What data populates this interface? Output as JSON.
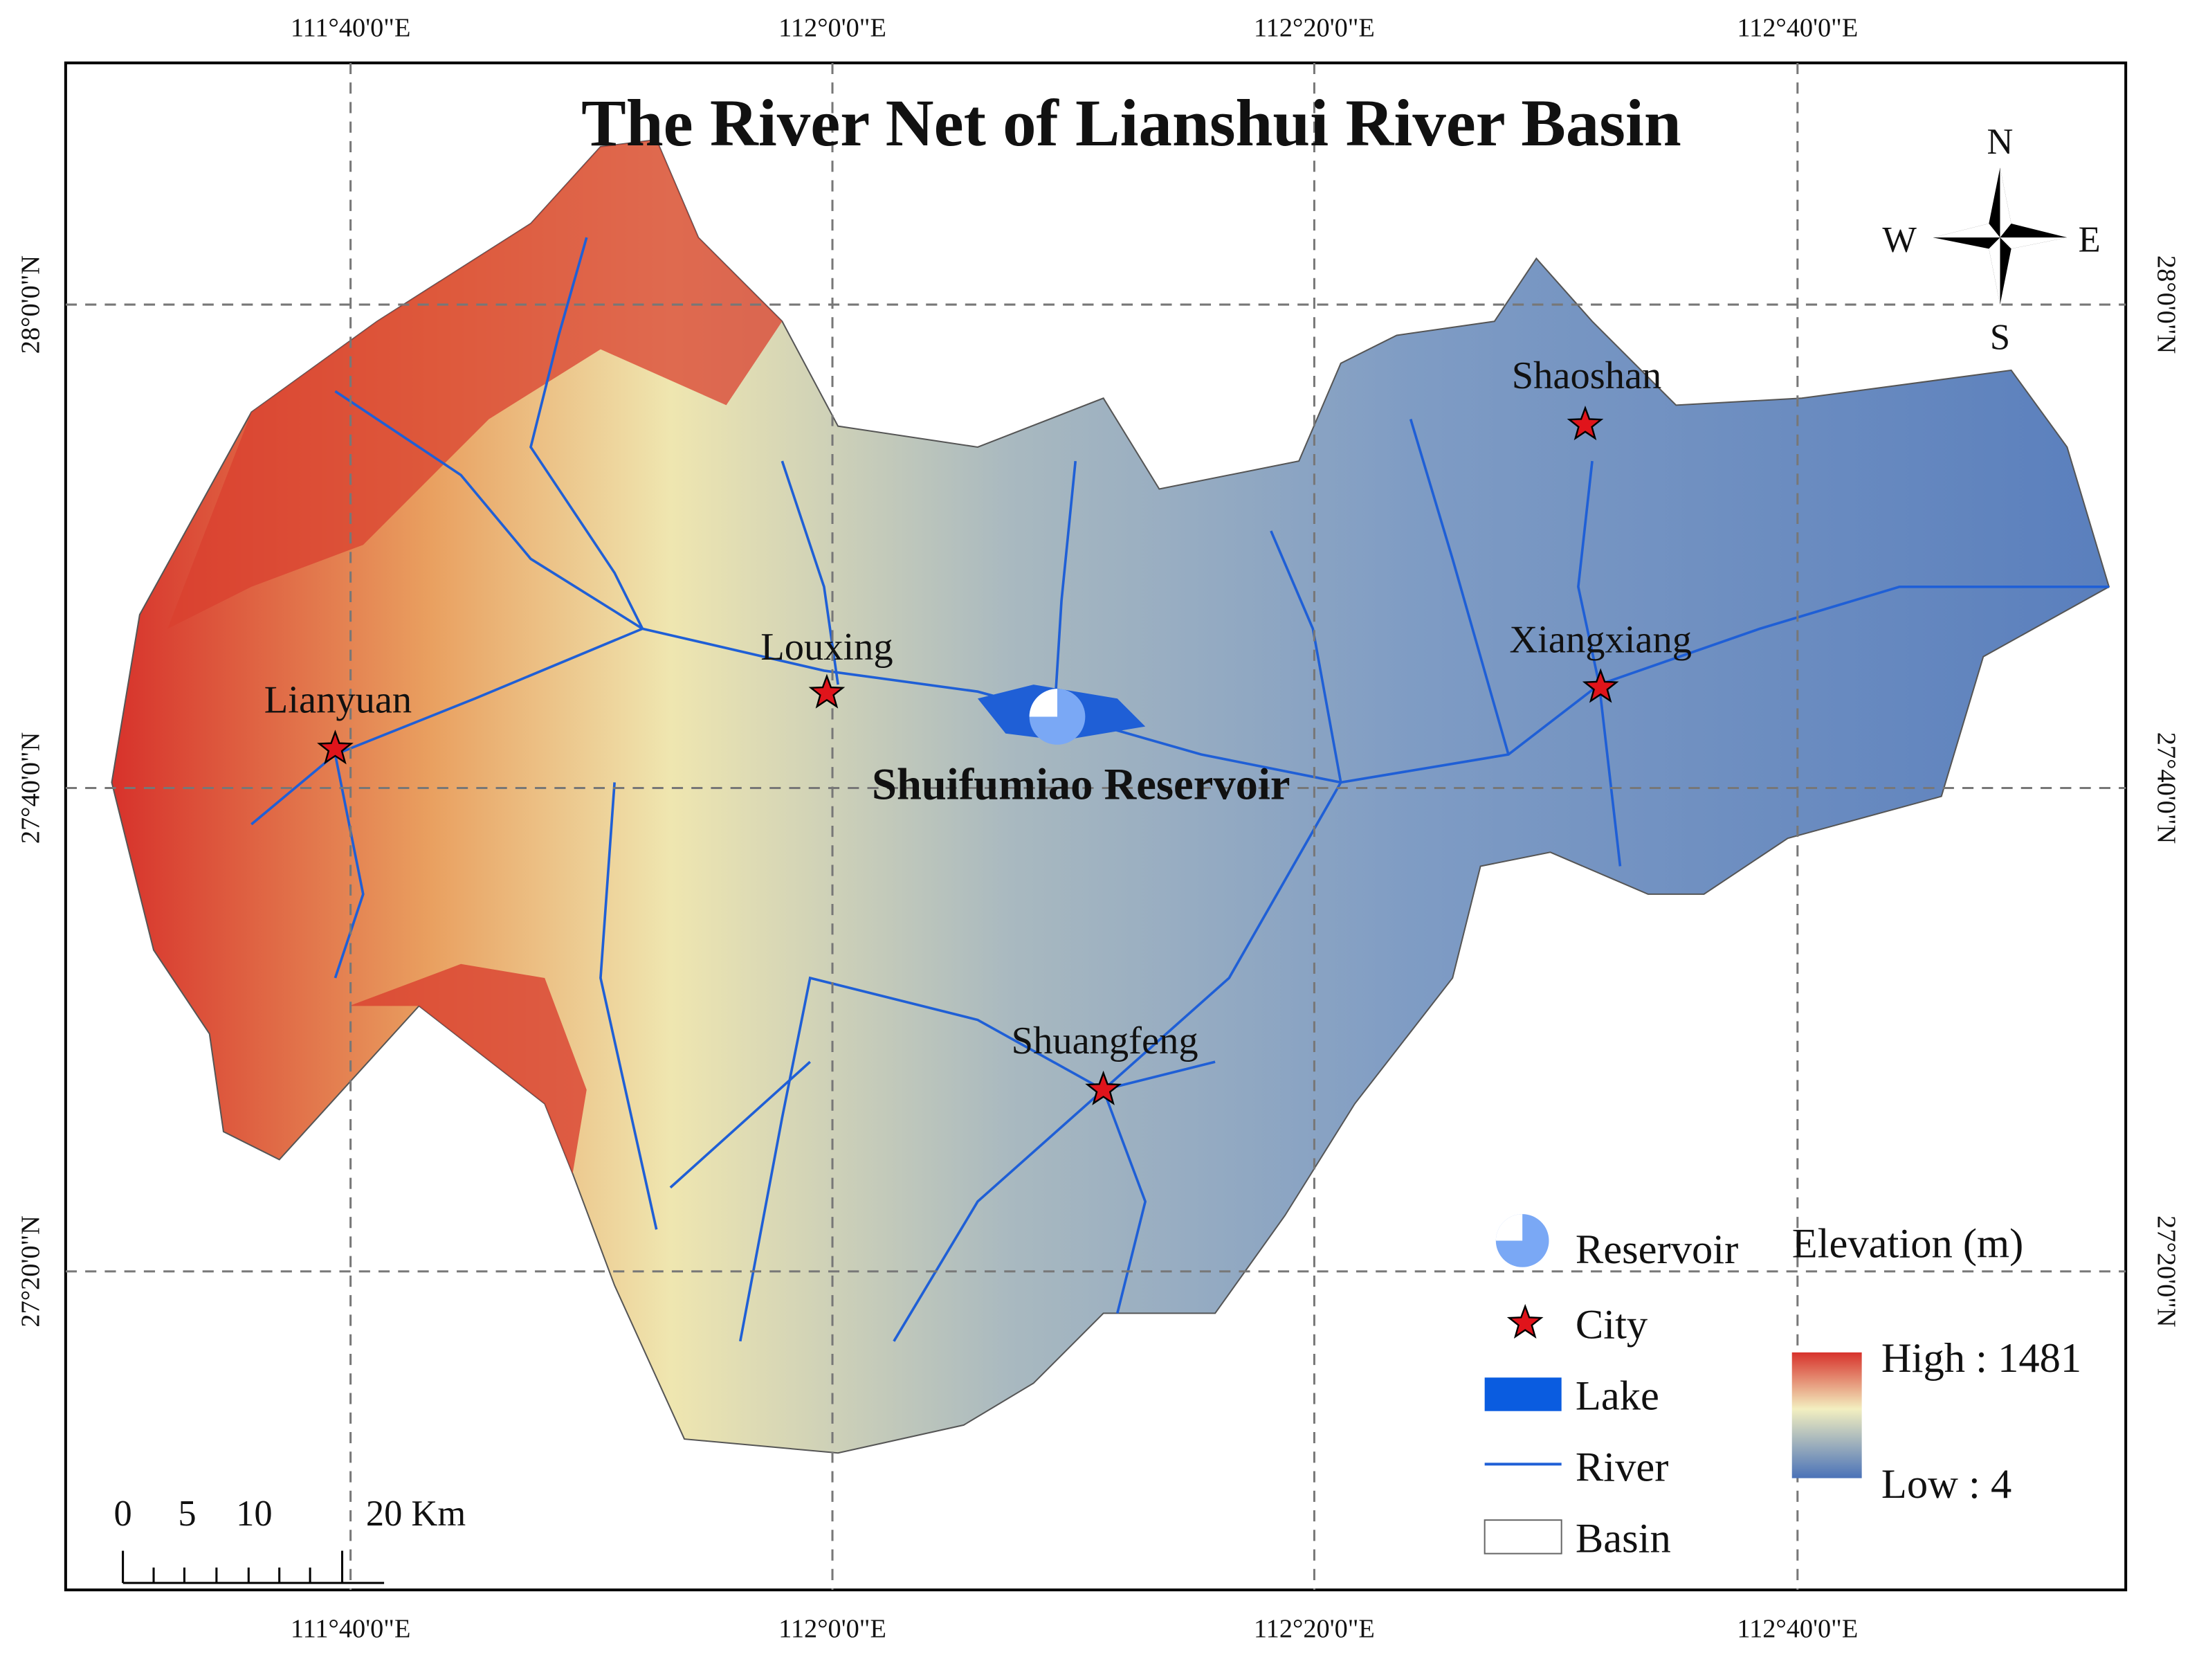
{
  "title": "The River Net of Lianshui River Basin",
  "longitude_labels": [
    "111°40'0\"E",
    "112°0'0\"E",
    "112°20'0\"E",
    "112°40'0\"E"
  ],
  "latitude_labels": [
    "28°0'0\"N",
    "27°40'0\"N",
    "27°20'0\"N"
  ],
  "compass": {
    "n": "N",
    "s": "S",
    "e": "E",
    "w": "W"
  },
  "cities": [
    "Shaoshan",
    "Xiangxiang",
    "Louxing",
    "Lianyuan",
    "Shuangfeng"
  ],
  "reservoir_label": "Shuifumiao Reservoir",
  "legend": {
    "items": [
      "Reservoir",
      "City",
      "Lake",
      "River",
      "Basin"
    ],
    "elevation_title": "Elevation (m)",
    "high": "High : 1481",
    "low": "Low : 4"
  },
  "scale_bar": {
    "labels": [
      "0",
      "5",
      "10",
      "20 Km"
    ]
  }
}
